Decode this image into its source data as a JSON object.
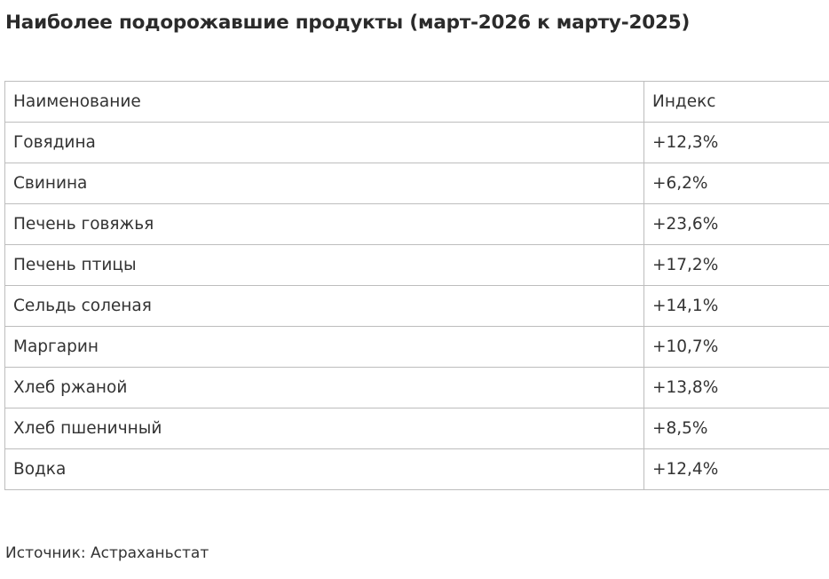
{
  "title": "Наиболее подорожавшие продукты (март-2026 к марту-2025)",
  "table": {
    "headers": [
      "Наименование",
      "Индекс"
    ],
    "rows": [
      [
        "Говядина",
        "+12,3%"
      ],
      [
        "Свинина",
        "+6,2%"
      ],
      [
        "Печень говяжья",
        "+23,6%"
      ],
      [
        "Печень птицы",
        "+17,2%"
      ],
      [
        "Сельдь соленая",
        "+14,1%"
      ],
      [
        "Маргарин",
        "+10,7%"
      ],
      [
        "Хлеб ржаной",
        "+13,8%"
      ],
      [
        "Хлеб пшеничный",
        "+8,5%"
      ],
      [
        "Водка",
        "+12,4%"
      ]
    ]
  },
  "source": "Источник: Астраханьстат"
}
